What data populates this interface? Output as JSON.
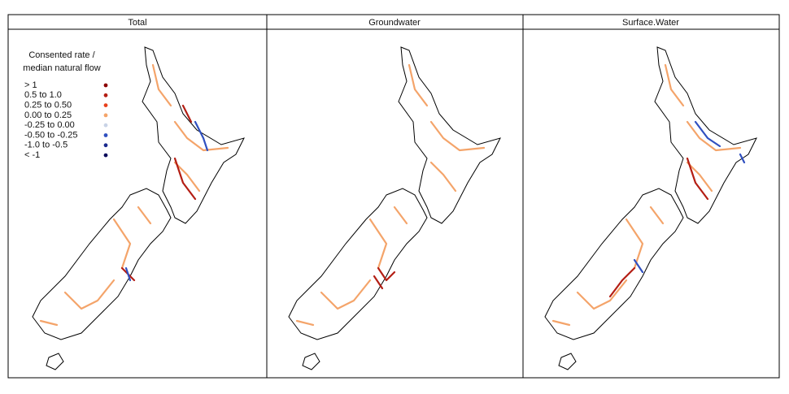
{
  "panels": [
    {
      "title": "Total"
    },
    {
      "title": "Groundwater"
    },
    {
      "title": "Surface.Water"
    }
  ],
  "legend": {
    "title_lines": [
      "Consented rate /",
      "median natural flow"
    ],
    "items": [
      {
        "label": "> 1",
        "color": "#8b0000"
      },
      {
        "label": "0.5 to 1.0",
        "color": "#b41e14"
      },
      {
        "label": "0.25 to 0.50",
        "color": "#e8401c"
      },
      {
        "label": "0.00 to 0.25",
        "color": "#f4a46a"
      },
      {
        "label": "-0.25 to 0.00",
        "color": "#c9d3e6"
      },
      {
        "label": "-0.50 to -0.25",
        "color": "#3050c0"
      },
      {
        "label": "-1.0 to -0.5",
        "color": "#1a2a8e"
      },
      {
        "label": "< -1",
        "color": "#0a0a5a"
      }
    ]
  }
}
